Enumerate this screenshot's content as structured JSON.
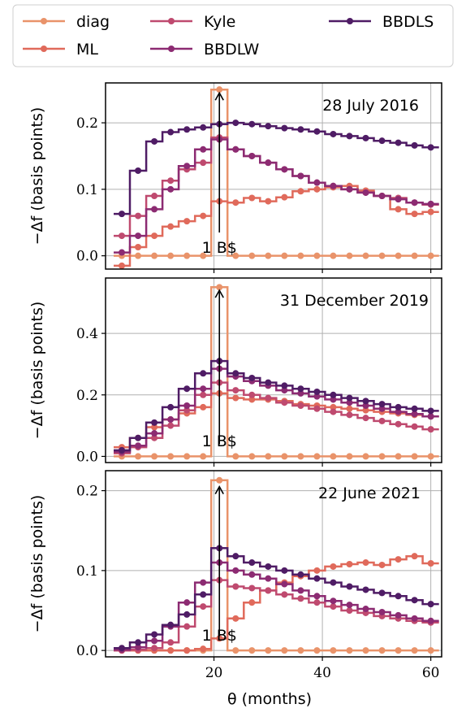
{
  "legend": {
    "placement": "top, above panels, 3 columns",
    "entries": [
      "diag",
      "ML",
      "Kyle",
      "BBDLW",
      "BBDLS"
    ]
  },
  "colors": {
    "diag": "#e9936a",
    "ML": "#e06a5b",
    "Kyle": "#bf4a6f",
    "BBDLW": "#8c2b72",
    "BBDLS": "#4f1c65"
  },
  "chart_data": [
    {
      "type": "line",
      "step": true,
      "title": "28 July 2016",
      "xlabel": "",
      "ylabel": "−Δf (basis points)",
      "xlim": [
        0,
        62
      ],
      "ylim": [
        -0.02,
        0.26
      ],
      "xticks": [
        20,
        40,
        60
      ],
      "yticks": [
        0.0,
        0.1,
        0.2
      ],
      "ytick_labels": [
        "0.0",
        "0.1",
        "0.2"
      ],
      "grid": true,
      "annotation": {
        "text": "1 B$",
        "x": 21,
        "y_from": 0.035,
        "y_to": 0.245
      },
      "x": [
        3,
        6,
        9,
        12,
        15,
        18,
        21,
        24,
        27,
        30,
        33,
        36,
        39,
        42,
        45,
        48,
        51,
        54,
        57,
        60
      ],
      "series": [
        {
          "name": "diag",
          "values": [
            0,
            0,
            0,
            0,
            0,
            0,
            0.25,
            0,
            0,
            0,
            0,
            0,
            0,
            0,
            0,
            0,
            0,
            0,
            0,
            0
          ]
        },
        {
          "name": "ML",
          "values": [
            -0.015,
            0.013,
            0.03,
            0.044,
            0.052,
            0.06,
            0.082,
            0.08,
            0.087,
            0.082,
            0.088,
            0.097,
            0.1,
            0.103,
            0.105,
            0.098,
            0.09,
            0.07,
            0.063,
            0.066
          ]
        },
        {
          "name": "Kyle",
          "values": [
            0.03,
            0.06,
            0.09,
            0.113,
            0.13,
            0.14,
            0.178,
            0.16,
            0.15,
            0.14,
            0.13,
            0.12,
            0.11,
            0.105,
            0.1,
            0.095,
            0.09,
            0.087,
            0.08,
            0.077
          ]
        },
        {
          "name": "BBDLW",
          "values": [
            0.005,
            0.03,
            0.07,
            0.1,
            0.135,
            0.16,
            0.175,
            0.16,
            0.15,
            0.14,
            0.13,
            0.12,
            0.11,
            0.105,
            0.1,
            0.095,
            0.09,
            0.085,
            0.08,
            0.078
          ]
        },
        {
          "name": "BBDLS",
          "values": [
            0.063,
            0.128,
            0.172,
            0.186,
            0.19,
            0.193,
            0.198,
            0.2,
            0.198,
            0.195,
            0.192,
            0.19,
            0.187,
            0.183,
            0.18,
            0.177,
            0.173,
            0.17,
            0.166,
            0.163
          ]
        }
      ]
    },
    {
      "type": "line",
      "step": true,
      "title": "31 December 2019",
      "xlabel": "",
      "ylabel": "−Δf (basis points)",
      "xlim": [
        0,
        62
      ],
      "ylim": [
        -0.02,
        0.58
      ],
      "xticks": [
        20,
        40,
        60
      ],
      "yticks": [
        0.0,
        0.2,
        0.4
      ],
      "ytick_labels": [
        "0.0",
        "0.2",
        "0.4"
      ],
      "grid": true,
      "annotation": {
        "text": "1 B$",
        "x": 21,
        "y_from": 0.04,
        "y_to": 0.54
      },
      "x": [
        3,
        6,
        9,
        12,
        15,
        18,
        21,
        24,
        27,
        30,
        33,
        36,
        39,
        42,
        45,
        48,
        51,
        54,
        57,
        60
      ],
      "series": [
        {
          "name": "diag",
          "values": [
            0,
            0,
            0,
            0,
            0,
            0,
            0.55,
            0,
            0,
            0,
            0,
            0,
            0,
            0,
            0,
            0,
            0,
            0,
            0,
            0
          ]
        },
        {
          "name": "ML",
          "values": [
            0.03,
            0.06,
            0.095,
            0.12,
            0.14,
            0.16,
            0.205,
            0.19,
            0.185,
            0.185,
            0.18,
            0.17,
            0.165,
            0.16,
            0.155,
            0.15,
            0.145,
            0.14,
            0.135,
            0.13
          ]
        },
        {
          "name": "Kyle",
          "values": [
            0.01,
            0.03,
            0.06,
            0.1,
            0.15,
            0.2,
            0.24,
            0.215,
            0.2,
            0.19,
            0.175,
            0.165,
            0.155,
            0.145,
            0.135,
            0.125,
            0.115,
            0.105,
            0.097,
            0.088
          ]
        },
        {
          "name": "BBDLW",
          "values": [
            0.015,
            0.035,
            0.075,
            0.12,
            0.165,
            0.22,
            0.285,
            0.26,
            0.245,
            0.23,
            0.215,
            0.205,
            0.195,
            0.185,
            0.175,
            0.165,
            0.155,
            0.145,
            0.138,
            0.13
          ]
        },
        {
          "name": "BBDLS",
          "values": [
            0.02,
            0.06,
            0.11,
            0.16,
            0.22,
            0.27,
            0.31,
            0.27,
            0.255,
            0.24,
            0.23,
            0.22,
            0.21,
            0.2,
            0.19,
            0.18,
            0.17,
            0.16,
            0.155,
            0.148
          ]
        }
      ]
    },
    {
      "type": "line",
      "step": true,
      "title": "22 June 2021",
      "xlabel": "θ (months)",
      "ylabel": "−Δf (basis points)",
      "xlim": [
        0,
        62
      ],
      "ylim": [
        -0.008,
        0.225
      ],
      "xticks": [
        20,
        40,
        60
      ],
      "yticks": [
        0.0,
        0.1,
        0.2
      ],
      "ytick_labels": [
        "0.0",
        "0.1",
        "0.2"
      ],
      "grid": true,
      "annotation": {
        "text": "1 B$",
        "x": 21,
        "y_from": 0.018,
        "y_to": 0.205
      },
      "x": [
        3,
        6,
        9,
        12,
        15,
        18,
        21,
        24,
        27,
        30,
        33,
        36,
        39,
        42,
        45,
        48,
        51,
        54,
        57,
        60
      ],
      "series": [
        {
          "name": "diag",
          "values": [
            0,
            0,
            0,
            0,
            0,
            0,
            0.213,
            0,
            0,
            0,
            0,
            0,
            0,
            0,
            0,
            0,
            0,
            0,
            0,
            0
          ]
        },
        {
          "name": "ML",
          "values": [
            0.0,
            0.0,
            0.0,
            0.0,
            0.0,
            0.002,
            0.015,
            0.04,
            0.06,
            0.075,
            0.085,
            0.093,
            0.1,
            0.105,
            0.108,
            0.11,
            0.107,
            0.114,
            0.118,
            0.109
          ]
        },
        {
          "name": "Kyle",
          "values": [
            0.0,
            0.001,
            0.003,
            0.01,
            0.03,
            0.055,
            0.088,
            0.08,
            0.078,
            0.075,
            0.07,
            0.065,
            0.06,
            0.055,
            0.05,
            0.047,
            0.043,
            0.04,
            0.037,
            0.035
          ]
        },
        {
          "name": "BBDLW",
          "values": [
            0.001,
            0.004,
            0.012,
            0.03,
            0.06,
            0.085,
            0.11,
            0.1,
            0.095,
            0.09,
            0.083,
            0.075,
            0.068,
            0.062,
            0.057,
            0.052,
            0.048,
            0.044,
            0.04,
            0.037
          ]
        },
        {
          "name": "BBDLS",
          "values": [
            0.003,
            0.01,
            0.02,
            0.032,
            0.045,
            0.07,
            0.128,
            0.118,
            0.11,
            0.105,
            0.1,
            0.095,
            0.09,
            0.085,
            0.08,
            0.076,
            0.072,
            0.068,
            0.063,
            0.058
          ]
        }
      ]
    }
  ]
}
